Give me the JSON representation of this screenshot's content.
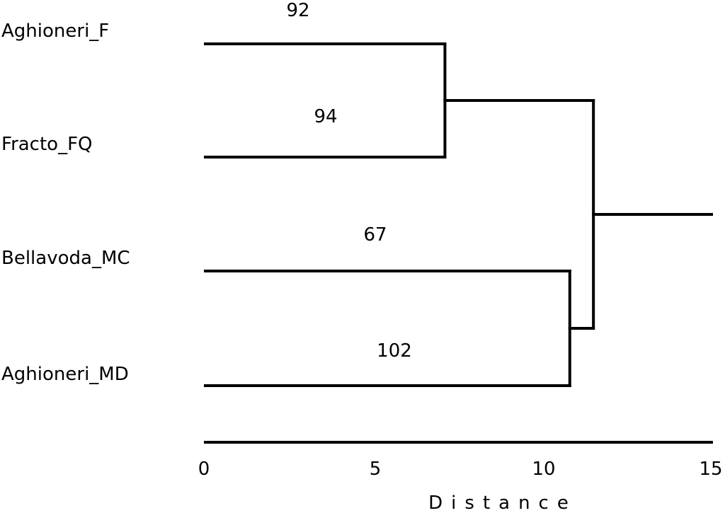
{
  "dendrogram": {
    "leaves": [
      "Aghioneri_F",
      "Fracto_FQ",
      "Bellavoda_MC",
      "Aghioneri_MD"
    ],
    "merges": [
      {
        "children": [
          "Aghioneri_F",
          "Fracto_FQ"
        ],
        "height": 7.1
      },
      {
        "children": [
          "Bellavoda_MC",
          "Aghioneri_MD"
        ],
        "height": 10.8
      },
      {
        "children": [
          "cluster-1",
          "cluster-2"
        ],
        "height": 11.5
      }
    ],
    "branch_labels": [
      {
        "leaf": "Aghioneri_F",
        "text": "92"
      },
      {
        "leaf": "Fracto_FQ",
        "text": "94"
      },
      {
        "leaf": "Bellavoda_MC",
        "text": "67"
      },
      {
        "leaf": "Aghioneri_MD",
        "text": "102"
      }
    ]
  },
  "axis": {
    "title": "Distance",
    "range": [
      0,
      15
    ],
    "ticks": [
      "0",
      "5",
      "10",
      "15"
    ]
  },
  "colors": {
    "line": "#000000",
    "background": "#ffffff"
  }
}
